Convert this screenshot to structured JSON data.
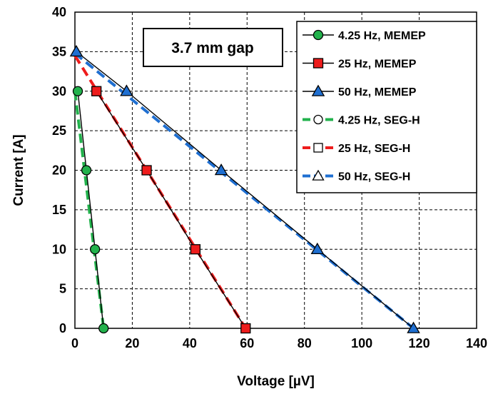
{
  "chart_data": {
    "type": "line",
    "xlabel": "Voltage [µV]",
    "ylabel": "Current [A]",
    "xlim": [
      0,
      140
    ],
    "ylim": [
      0,
      40
    ],
    "xticks": [
      "0",
      "20",
      "40",
      "60",
      "80",
      "100",
      "120",
      "140"
    ],
    "yticks": [
      "0",
      "5",
      "10",
      "15",
      "20",
      "25",
      "30",
      "35",
      "40"
    ],
    "grid": true,
    "grid_style": "dashed",
    "legend_position": "top-right",
    "annotation": "3.7 mm gap",
    "series": [
      {
        "name": "4.25 Hz, MEMEP",
        "kind": "markers",
        "marker": "circle",
        "filled": true,
        "color": "#22b24c",
        "x": [
          1,
          4,
          7,
          10
        ],
        "y": [
          30,
          20,
          10,
          0
        ]
      },
      {
        "name": "25 Hz, MEMEP",
        "kind": "markers",
        "marker": "square",
        "filled": true,
        "color": "#ee1c1c",
        "x": [
          7.5,
          25,
          42,
          59.5
        ],
        "y": [
          30,
          20,
          10,
          0
        ]
      },
      {
        "name": "50 Hz, MEMEP",
        "kind": "markers",
        "marker": "triangle",
        "filled": true,
        "color": "#1f6fd1",
        "x": [
          0.5,
          18,
          51,
          84.5,
          118
        ],
        "y": [
          35,
          30,
          20,
          10,
          0
        ]
      },
      {
        "name": "4.25 Hz, SEG-H",
        "kind": "line",
        "marker": "circle",
        "filled": false,
        "color": "#22b24c",
        "x": [
          0,
          10
        ],
        "y": [
          30,
          0
        ]
      },
      {
        "name": "25 Hz, SEG-H",
        "kind": "line",
        "marker": "square",
        "filled": false,
        "color": "#ee1c1c",
        "x": [
          0,
          59.5
        ],
        "y": [
          34.5,
          0
        ]
      },
      {
        "name": "50 Hz, SEG-H",
        "kind": "line",
        "marker": "triangle",
        "filled": false,
        "color": "#1f6fd1",
        "x": [
          0,
          118
        ],
        "y": [
          34.8,
          0
        ]
      }
    ]
  }
}
